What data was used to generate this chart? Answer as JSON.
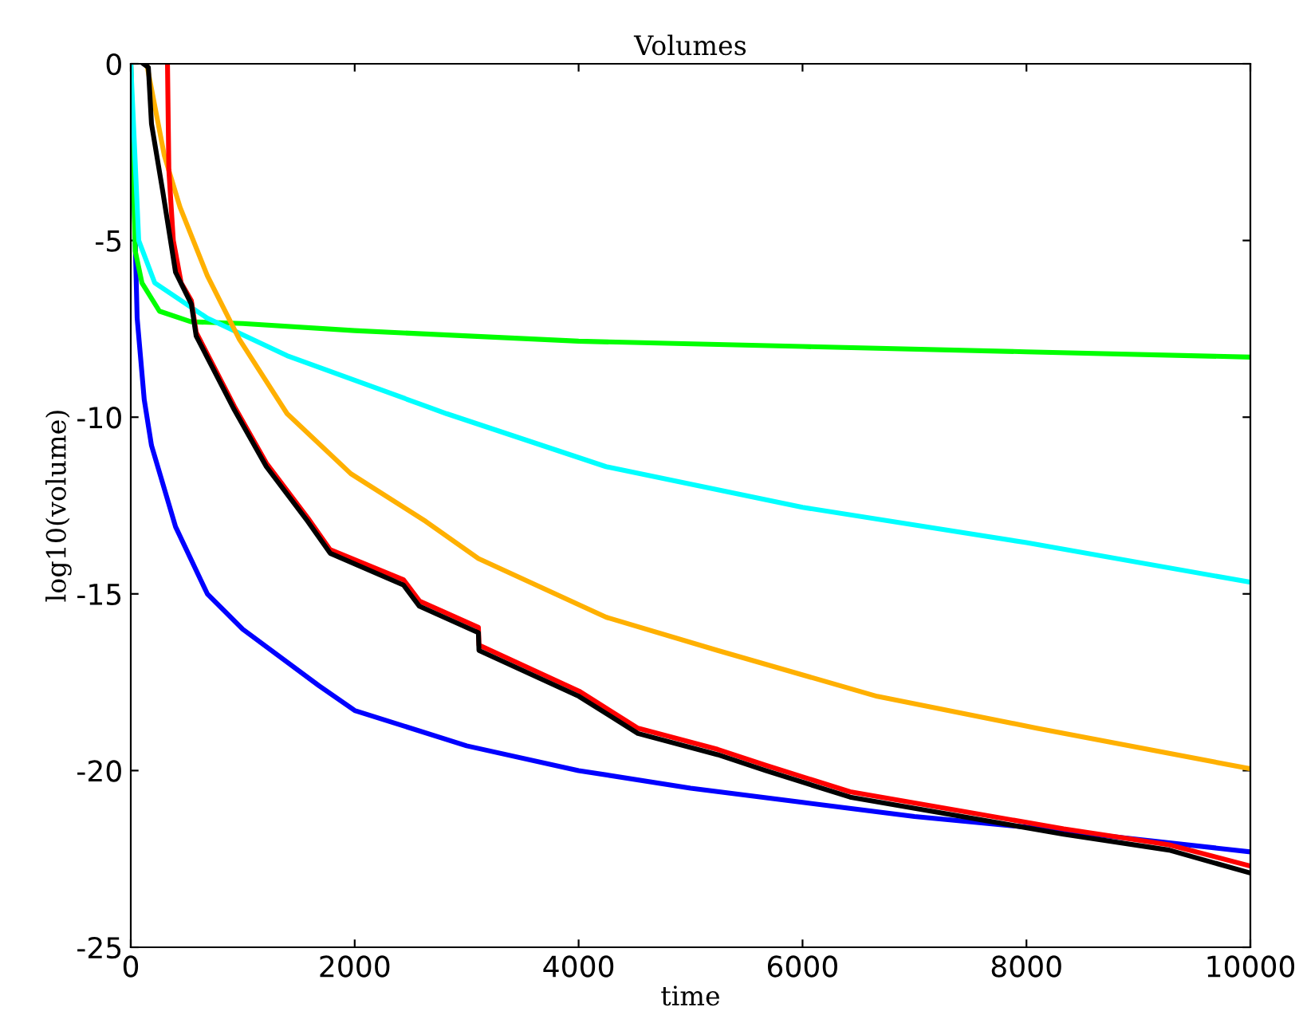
{
  "chart_data": {
    "type": "line",
    "title": "Volumes",
    "xlabel": "time",
    "ylabel": "log10(volume)",
    "xlim": [
      0,
      10000
    ],
    "ylim": [
      -25,
      0
    ],
    "xticks": [
      0,
      2000,
      4000,
      6000,
      8000,
      10000
    ],
    "yticks": [
      -25,
      -20,
      -15,
      -10,
      -5,
      0
    ],
    "grid": false,
    "legend": false,
    "series": [
      {
        "color": "#0000ff",
        "x": [
          0,
          57,
          120,
          185,
          400,
          684,
          1000,
          1681,
          2000,
          3000,
          4000,
          5000,
          6000,
          7000,
          8000,
          9000,
          10000
        ],
        "values": [
          0,
          -7.2,
          -9.5,
          -10.8,
          -13.1,
          -15.0,
          -16.0,
          -17.6,
          -18.3,
          -19.3,
          -20.0,
          -20.5,
          -20.9,
          -21.3,
          -21.6,
          -21.95,
          -22.3
        ]
      },
      {
        "color": "#00ff00",
        "x": [
          0,
          40,
          100,
          256,
          540,
          1000,
          2000,
          4000,
          6000,
          8000,
          10000
        ],
        "values": [
          0,
          -5.3,
          -6.2,
          -7.0,
          -7.3,
          -7.35,
          -7.55,
          -7.85,
          -8.0,
          -8.15,
          -8.3
        ]
      },
      {
        "color": "#00ffff",
        "x": [
          0,
          71,
          214,
          684,
          1396,
          2820,
          4245,
          6000,
          8000,
          10000
        ],
        "values": [
          0,
          -5.0,
          -6.2,
          -7.2,
          -8.26,
          -9.9,
          -11.4,
          -12.55,
          -13.55,
          -14.67
        ]
      },
      {
        "color": "#ffb000",
        "x": [
          142,
          300,
          440,
          684,
          970,
          1396,
          1966,
          2635,
          3105,
          4245,
          5242,
          6667,
          8091,
          10000
        ],
        "values": [
          0,
          -2.6,
          -4.06,
          -6.0,
          -7.8,
          -9.9,
          -11.6,
          -12.95,
          -14.0,
          -15.66,
          -16.6,
          -17.9,
          -18.8,
          -19.95
        ]
      },
      {
        "color": "#ff0000",
        "x": [
          328,
          340,
          380,
          450,
          541,
          584,
          926,
          1211,
          1581,
          1781,
          2436,
          2578,
          3105,
          3110,
          4003,
          4530,
          5242,
          5670,
          6425,
          8333,
          9274,
          10000
        ],
        "values": [
          0,
          -3,
          -5,
          -6.2,
          -6.7,
          -7.6,
          -9.7,
          -11.3,
          -12.85,
          -13.75,
          -14.6,
          -15.2,
          -15.95,
          -16.45,
          -17.75,
          -18.8,
          -19.4,
          -19.85,
          -20.6,
          -21.65,
          -22.1,
          -22.7
        ]
      },
      {
        "color": "#000000",
        "x": [
          114,
          157,
          185,
          285,
          400,
          541,
          584,
          926,
          1211,
          1581,
          1781,
          2436,
          2578,
          3105,
          3110,
          4003,
          4530,
          5242,
          5670,
          6425,
          8333,
          9274,
          10000
        ],
        "values": [
          0,
          -0.1,
          -1.7,
          -3.6,
          -5.9,
          -6.8,
          -7.7,
          -9.8,
          -11.4,
          -12.95,
          -13.85,
          -14.75,
          -15.35,
          -16.1,
          -16.6,
          -17.9,
          -18.95,
          -19.55,
          -20.0,
          -20.75,
          -21.8,
          -22.25,
          -22.9
        ]
      }
    ]
  }
}
